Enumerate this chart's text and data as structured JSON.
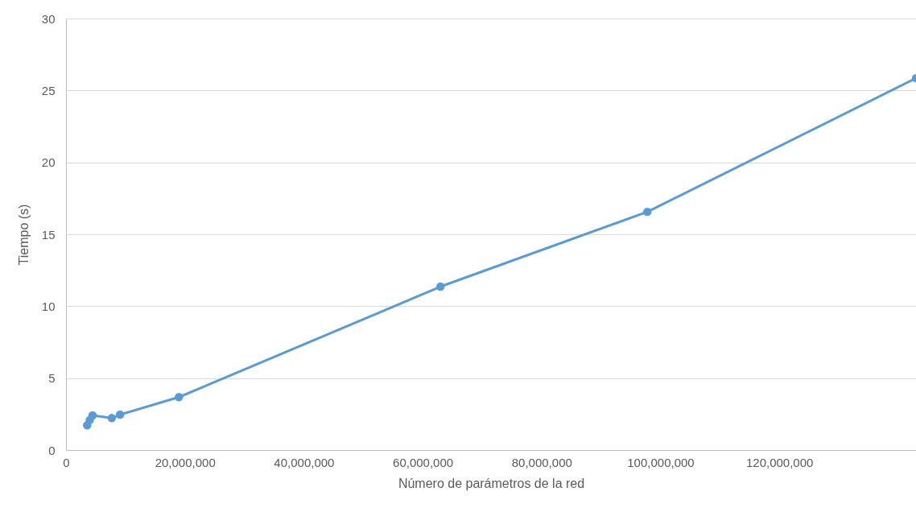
{
  "chart_data": {
    "type": "line",
    "xlabel": "Número de parámetros de la red",
    "ylabel": "Tiempo (s)",
    "x": [
      3560000,
      4000000,
      4470000,
      7700000,
      9100000,
      19000000,
      63000000,
      97800000,
      143000000
    ],
    "series": [
      {
        "color": "#5b9bd5",
        "values": [
          1.72,
          2.09,
          2.41,
          2.22,
          2.46,
          3.68,
          11.36,
          16.56,
          25.85
        ]
      }
    ],
    "xlim": [
      0,
      143000000
    ],
    "xticks": [
      0,
      {
        "value": 20000000,
        "label": "20,000,000"
      },
      {
        "value": 40000000,
        "label": "40,000,000"
      },
      {
        "value": 60000000,
        "label": "60,000,000"
      },
      {
        "value": 80000000,
        "label": "80,000,000"
      },
      {
        "value": 100000000,
        "label": "100,000,000"
      },
      {
        "value": 120000000,
        "label": "120,000,000"
      }
    ],
    "ylim": [
      0,
      30
    ],
    "yticks": [
      0,
      5,
      10,
      15,
      20,
      25,
      30
    ],
    "grid": "y",
    "marker": "circle",
    "line_style": "solid",
    "legend": false
  }
}
